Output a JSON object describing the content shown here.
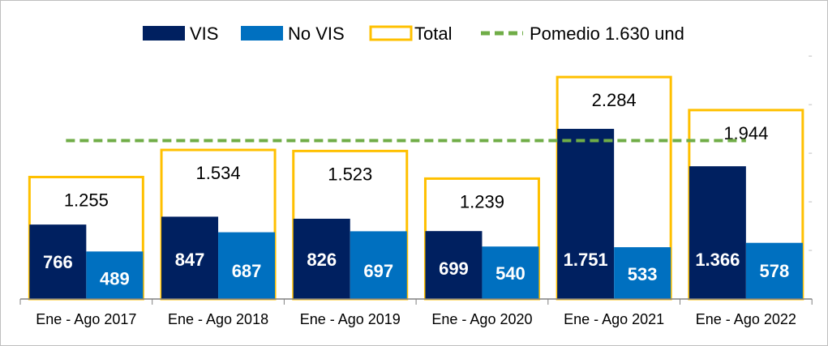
{
  "chart_data": {
    "type": "bar",
    "categories": [
      "Ene - Ago 2017",
      "Ene - Ago 2018",
      "Ene - Ago 2019",
      "Ene - Ago 2020",
      "Ene - Ago 2021",
      "Ene - Ago 2022"
    ],
    "series": [
      {
        "name": "VIS",
        "values": [
          766,
          847,
          826,
          699,
          1751,
          1366
        ],
        "labels": [
          "766",
          "847",
          "826",
          "699",
          "1.751",
          "1.366"
        ],
        "color": "#002060"
      },
      {
        "name": "No VIS",
        "values": [
          489,
          687,
          697,
          540,
          533,
          578
        ],
        "labels": [
          "489",
          "687",
          "697",
          "540",
          "533",
          "578"
        ],
        "color": "#0070C0"
      },
      {
        "name": "Total",
        "values": [
          1255,
          1534,
          1523,
          1239,
          2284,
          1944
        ],
        "labels": [
          "1.255",
          "1.534",
          "1.523",
          "1.239",
          "2.284",
          "1.944"
        ],
        "color": "#FFC000"
      }
    ],
    "average": {
      "name": "Pomedio 1.630 und",
      "value": 1630,
      "color": "#70AD47"
    },
    "ylim": [
      0,
      2500
    ],
    "legend_position": "top",
    "grid": false
  }
}
